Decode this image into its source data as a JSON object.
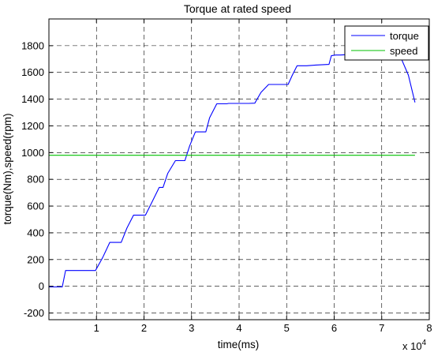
{
  "chart_data": {
    "type": "line",
    "title": "Torque at rated speed",
    "xlabel": "time(ms)",
    "ylabel": "torque(Nm),speed(rpm)",
    "x_multiplier_label": "x 10",
    "x_multiplier_exponent": "4",
    "xlim": [
      0,
      80000
    ],
    "ylim": [
      -250,
      2000
    ],
    "x_ticks": [
      10000,
      20000,
      30000,
      40000,
      50000,
      60000,
      70000,
      80000
    ],
    "x_tick_labels": [
      "1",
      "2",
      "3",
      "4",
      "5",
      "6",
      "7",
      "8"
    ],
    "y_ticks": [
      -200,
      0,
      200,
      400,
      600,
      800,
      1000,
      1200,
      1400,
      1600,
      1800
    ],
    "y_tick_labels": [
      "-200",
      "0",
      "200",
      "400",
      "600",
      "800",
      "1000",
      "1200",
      "1400",
      "1600",
      "1800"
    ],
    "grid": true,
    "grid_style": "dashed",
    "legend_position": "top-right",
    "series": [
      {
        "name": "torque",
        "color": "#0000ff",
        "x": [
          0,
          2800,
          3500,
          9800,
          11300,
          12800,
          15200,
          16400,
          17800,
          20300,
          21800,
          23200,
          24000,
          25000,
          26600,
          28600,
          29600,
          30800,
          33000,
          33800,
          35300,
          36500,
          37400,
          37800,
          40000,
          42000,
          43300,
          44600,
          46200,
          48500,
          50300,
          51200,
          52200,
          54200,
          56100,
          58900,
          59400,
          60300,
          61300,
          63500,
          65500,
          66800,
          68200,
          70000,
          72000,
          73800,
          75600,
          77000
        ],
        "y": [
          -5,
          -5,
          118,
          118,
          215,
          328,
          328,
          435,
          532,
          532,
          638,
          740,
          740,
          845,
          940,
          940,
          1050,
          1155,
          1155,
          1260,
          1365,
          1365,
          1365,
          1368,
          1368,
          1368,
          1370,
          1450,
          1510,
          1510,
          1510,
          1580,
          1650,
          1650,
          1655,
          1660,
          1725,
          1730,
          1730,
          1735,
          1740,
          1740,
          1742,
          1740,
          1745,
          1730,
          1580,
          1375
        ]
      },
      {
        "name": "speed",
        "color": "#00c000",
        "x": [
          0,
          77000
        ],
        "y": [
          980,
          980
        ]
      }
    ]
  }
}
